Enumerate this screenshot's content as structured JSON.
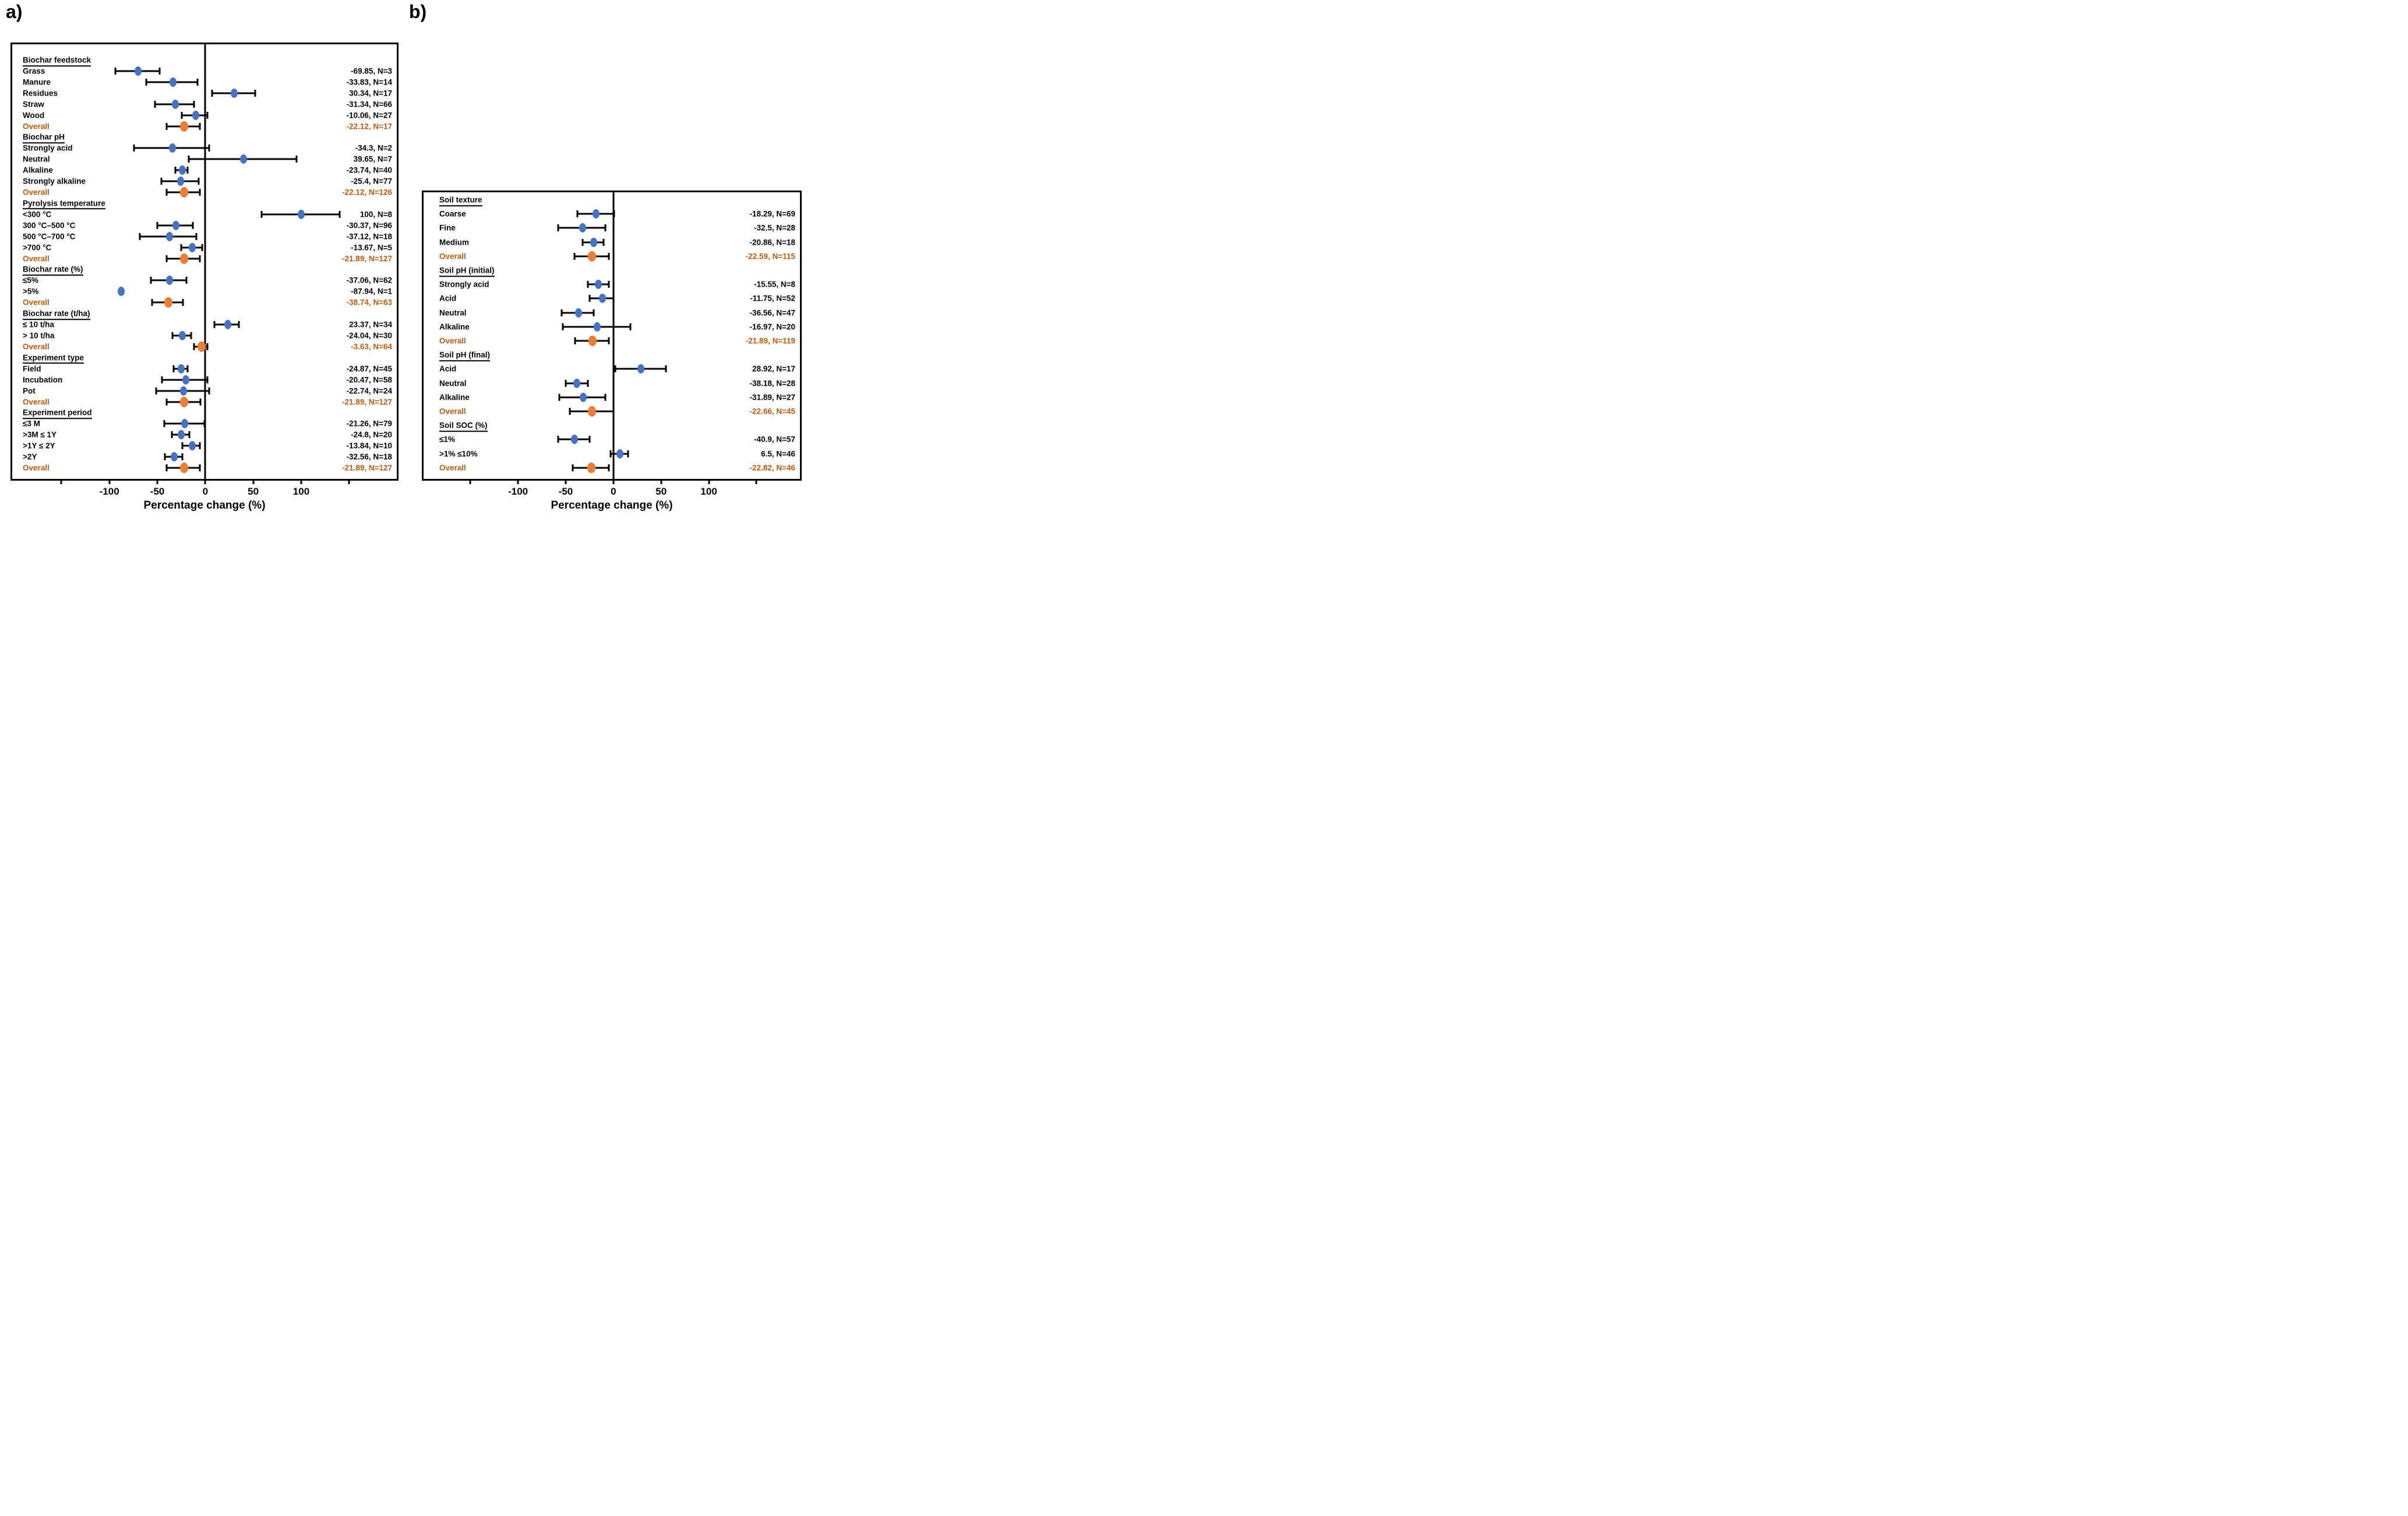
{
  "figure": {
    "background": "#ffffff",
    "colors": {
      "marker": "#4472C4",
      "overall_marker": "#ED7D31",
      "overall_text": "#C55A11",
      "text": "#000000",
      "axis": "#000000"
    }
  },
  "chart_data": [
    {
      "panel_label": "a)",
      "type": "forest",
      "xlabel": "Percentage change (%)",
      "axis": {
        "xlim": [
          -201.2,
          199.6
        ],
        "grid": false,
        "ticks": [
          {
            "v": -150
          },
          {
            "v": -100,
            "label": "-100"
          },
          {
            "v": -50,
            "label": "-50"
          },
          {
            "v": 0,
            "label": "0"
          },
          {
            "v": 50,
            "label": "50"
          },
          {
            "v": 100,
            "label": "100"
          },
          {
            "v": 150
          }
        ]
      },
      "groups": [
        {
          "header": "Biochar feedstock",
          "rows": [
            {
              "label": "Grass",
              "mean": -69.85,
              "n": 3,
              "ci": [
                -94,
                -47.5
              ],
              "value_text": "-69.85, N=3"
            },
            {
              "label": "Manure",
              "mean": -33.83,
              "n": 14,
              "ci": [
                -61.5,
                -8
              ],
              "value_text": "-33.83, N=14"
            },
            {
              "label": "Residues",
              "mean": 30.34,
              "n": 17,
              "ci": [
                7,
                52
              ],
              "value_text": "30.34, N=17"
            },
            {
              "label": "Straw",
              "mean": -31.34,
              "n": 66,
              "ci": [
                -52.5,
                -12
              ],
              "value_text": "-31.34, N=66"
            },
            {
              "label": "Wood",
              "mean": -10.06,
              "n": 27,
              "ci": [
                -24.5,
                2.5
              ],
              "value_text": "-10.06, N=27"
            },
            {
              "label": "Overall",
              "mean": -22.12,
              "n": 17,
              "ci": [
                -40,
                -5.5
              ],
              "value_text": "-22.12, N=17",
              "overall": true
            }
          ]
        },
        {
          "header": "Biochar pH",
          "rows": [
            {
              "label": "Strongly acid",
              "mean": -34.3,
              "n": 2,
              "ci": [
                -74,
                4
              ],
              "value_text": "-34.3, N=2"
            },
            {
              "label": "Neutral",
              "mean": 39.65,
              "n": 7,
              "ci": [
                -17,
                95
              ],
              "value_text": "39.65, N=7"
            },
            {
              "label": "Alkaline",
              "mean": -23.74,
              "n": 40,
              "ci": [
                -31,
                -18.5
              ],
              "value_text": "-23.74, N=40"
            },
            {
              "label": "Strongly alkaline",
              "mean": -25.4,
              "n": 77,
              "ci": [
                -45.5,
                -7
              ],
              "value_text": "-25.4, N=77"
            },
            {
              "label": "Overall",
              "mean": -22.12,
              "n": 126,
              "ci": [
                -40,
                -5.5
              ],
              "value_text": "-22.12, N=126",
              "overall": true
            }
          ]
        },
        {
          "header": "Pyrolysis temperature",
          "rows": [
            {
              "label": "<300 °C",
              "mean": 100,
              "n": 8,
              "ci": [
                59,
                140
              ],
              "value_text": "100, N=8"
            },
            {
              "label": "300 °C–500 °C",
              "mean": -30.37,
              "n": 96,
              "ci": [
                -50,
                -13
              ],
              "value_text": "-30.37, N=96"
            },
            {
              "label": "500 °C–700 °C",
              "mean": -37.12,
              "n": 18,
              "ci": [
                -68,
                -9
              ],
              "value_text": "-37.12, N=18"
            },
            {
              "label": ">700 °C",
              "mean": -13.67,
              "n": 5,
              "ci": [
                -25,
                -3
              ],
              "value_text": "-13.67, N=5"
            },
            {
              "label": "Overall",
              "mean": -21.89,
              "n": 127,
              "ci": [
                -40,
                -5.5
              ],
              "value_text": "-21.89, N=127",
              "overall": true
            }
          ]
        },
        {
          "header": "Biochar rate (%)",
          "rows": [
            {
              "label": "≤5%",
              "mean": -37.06,
              "n": 62,
              "ci": [
                -56.5,
                -19.5
              ],
              "value_text": "-37.06, N=62"
            },
            {
              "label": ">5%",
              "mean": -87.94,
              "n": 1,
              "ci": null,
              "value_text": "-87.94, N=1"
            },
            {
              "label": "Overall",
              "mean": -38.74,
              "n": 63,
              "ci": [
                -55.5,
                -23
              ],
              "value_text": "-38.74, N=63",
              "overall": true
            }
          ]
        },
        {
          "header": "Biochar rate (t/ha)",
          "rows": [
            {
              "label": "≤ 10 t/ha",
              "mean": 23.37,
              "n": 34,
              "ci": [
                9.5,
                35
              ],
              "value_text": "23.37, N=34"
            },
            {
              "label": "> 10 t/ha",
              "mean": -24.04,
              "n": 30,
              "ci": [
                -34,
                -15
              ],
              "value_text": "-24.04, N=30"
            },
            {
              "label": "Overall",
              "mean": -3.63,
              "n": 64,
              "ci": [
                -11.5,
                2.5
              ],
              "value_text": "-3.63, N=64",
              "overall": true
            }
          ]
        },
        {
          "header": "Experiment type",
          "rows": [
            {
              "label": "Field",
              "mean": -24.87,
              "n": 45,
              "ci": [
                -33,
                -18.5
              ],
              "value_text": "-24.87, N=45"
            },
            {
              "label": "Incubation",
              "mean": -20.47,
              "n": 58,
              "ci": [
                -45,
                2.5
              ],
              "value_text": "-20.47, N=58"
            },
            {
              "label": "Pot",
              "mean": -22.74,
              "n": 24,
              "ci": [
                -51.5,
                4
              ],
              "value_text": "-22.74, N=24"
            },
            {
              "label": "Overall",
              "mean": -21.89,
              "n": 127,
              "ci": [
                -40,
                -5
              ],
              "value_text": "-21.89, N=127",
              "overall": true
            }
          ]
        },
        {
          "header": "Experiment period",
          "rows": [
            {
              "label": "≤3 M",
              "mean": -21.26,
              "n": 79,
              "ci": [
                -43,
                -1
              ],
              "value_text": "-21.26, N=79"
            },
            {
              "label": ">3M ≤ 1Y",
              "mean": -24.8,
              "n": 20,
              "ci": [
                -35,
                -16.5
              ],
              "value_text": "-24.8, N=20"
            },
            {
              "label": ">1Y ≤ 2Y",
              "mean": -13.84,
              "n": 10,
              "ci": [
                -24,
                -5.5
              ],
              "value_text": "-13.84, N=10"
            },
            {
              "label": ">2Y",
              "mean": -32.56,
              "n": 18,
              "ci": [
                -42,
                -24
              ],
              "value_text": "-32.56, N=18"
            },
            {
              "label": "Overall",
              "mean": -21.89,
              "n": 127,
              "ci": [
                -40,
                -5.5
              ],
              "value_text": "-21.89, N=127",
              "overall": true
            }
          ]
        }
      ]
    },
    {
      "panel_label": "b)",
      "type": "forest",
      "xlabel": "Percentage change (%)",
      "axis": {
        "xlim": [
          -199,
          195.5
        ],
        "grid": false,
        "ticks": [
          {
            "v": -150
          },
          {
            "v": -100,
            "label": "-100"
          },
          {
            "v": -50,
            "label": "-50"
          },
          {
            "v": 0,
            "label": "0"
          },
          {
            "v": 50,
            "label": "50"
          },
          {
            "v": 100,
            "label": "100"
          },
          {
            "v": 150
          }
        ]
      },
      "groups": [
        {
          "header": "Soil texture",
          "rows": [
            {
              "label": "Coarse",
              "mean": -18.29,
              "n": 69,
              "ci": [
                -37.5,
                0.5
              ],
              "value_text": "-18.29, N=69"
            },
            {
              "label": "Fine",
              "mean": -32.5,
              "n": 28,
              "ci": [
                -58,
                -8.5
              ],
              "value_text": "-32.5, N=28"
            },
            {
              "label": "Medium",
              "mean": -20.86,
              "n": 18,
              "ci": [
                -32.5,
                -10.5
              ],
              "value_text": "-20.86, N=18"
            },
            {
              "label": "Overall",
              "mean": -22.59,
              "n": 115,
              "ci": [
                -41,
                -5
              ],
              "value_text": "-22.59, N=115",
              "overall": true
            }
          ]
        },
        {
          "header": "Soil pH (initial)",
          "rows": [
            {
              "label": "Strongly acid",
              "mean": -15.55,
              "n": 8,
              "ci": [
                -26.5,
                -5
              ],
              "value_text": "-15.55, N=8"
            },
            {
              "label": "Acid",
              "mean": -11.75,
              "n": 52,
              "ci": [
                -25,
                0
              ],
              "value_text": "-11.75, N=52"
            },
            {
              "label": "Neutral",
              "mean": -36.56,
              "n": 47,
              "ci": [
                -54,
                -20.5
              ],
              "value_text": "-36.56, N=47"
            },
            {
              "label": "Alkaline",
              "mean": -16.97,
              "n": 20,
              "ci": [
                -53,
                17.5
              ],
              "value_text": "-16.97, N=20"
            },
            {
              "label": "Overall",
              "mean": -21.89,
              "n": 119,
              "ci": [
                -40.5,
                -5
              ],
              "value_text": "-21.89, N=119",
              "overall": true
            }
          ]
        },
        {
          "header": "Soil pH  (final)",
          "rows": [
            {
              "label": "Acid",
              "mean": 28.92,
              "n": 17,
              "ci": [
                2,
                55
              ],
              "value_text": "28.92, N=17"
            },
            {
              "label": "Neutral",
              "mean": -38.18,
              "n": 28,
              "ci": [
                -50,
                -26.5
              ],
              "value_text": "-38.18, N=28"
            },
            {
              "label": "Alkaline",
              "mean": -31.89,
              "n": 27,
              "ci": [
                -57,
                -8.5
              ],
              "value_text": "-31.89, N=27"
            },
            {
              "label": "Overall",
              "mean": -22.66,
              "n": 45,
              "ci": [
                -45.5,
                0
              ],
              "value_text": "-22.66, N=45",
              "overall": true
            }
          ]
        },
        {
          "header": "Soil SOC (%)",
          "rows": [
            {
              "label": "≤1%",
              "mean": -40.9,
              "n": 57,
              "ci": [
                -58,
                -25
              ],
              "value_text": "-40.9, N=57"
            },
            {
              "label": ">1% ≤10%",
              "mean": 6.5,
              "n": 46,
              "ci": [
                -3,
                15.5
              ],
              "value_text": "6.5, N=46"
            },
            {
              "label": "Overall",
              "mean": -22.82,
              "n": 46,
              "ci": [
                -42.5,
                -4.5
              ],
              "value_text": "-22.82, N=46",
              "overall": true
            }
          ]
        }
      ]
    }
  ]
}
